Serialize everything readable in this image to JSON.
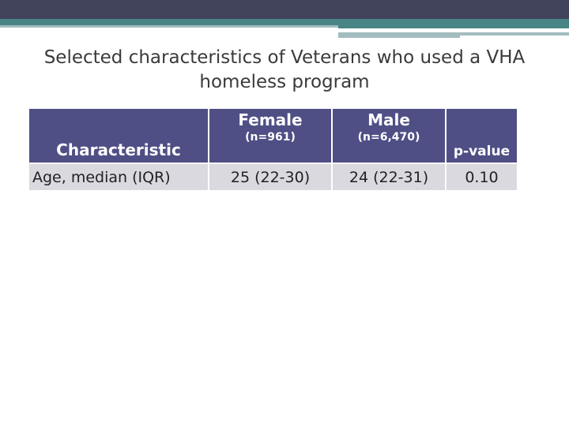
{
  "slide": {
    "title": "Selected characteristics of Veterans who used a VHA homeless program"
  },
  "table": {
    "headers": [
      {
        "label": "Characteristic",
        "sub": ""
      },
      {
        "label": "Female",
        "sub": "(n=961)"
      },
      {
        "label": "Male",
        "sub": "(n=6,470)"
      },
      {
        "label": "p-value",
        "sub": ""
      }
    ],
    "rows": [
      [
        "Age, median (IQR)",
        "25 (22-30)",
        "24 (22-31)",
        "0.10"
      ]
    ]
  },
  "colors": {
    "header_dark": "#41435a",
    "teal": "#4a8585",
    "table_header": "#4f4f86",
    "row_bg": "#d9d9df"
  }
}
